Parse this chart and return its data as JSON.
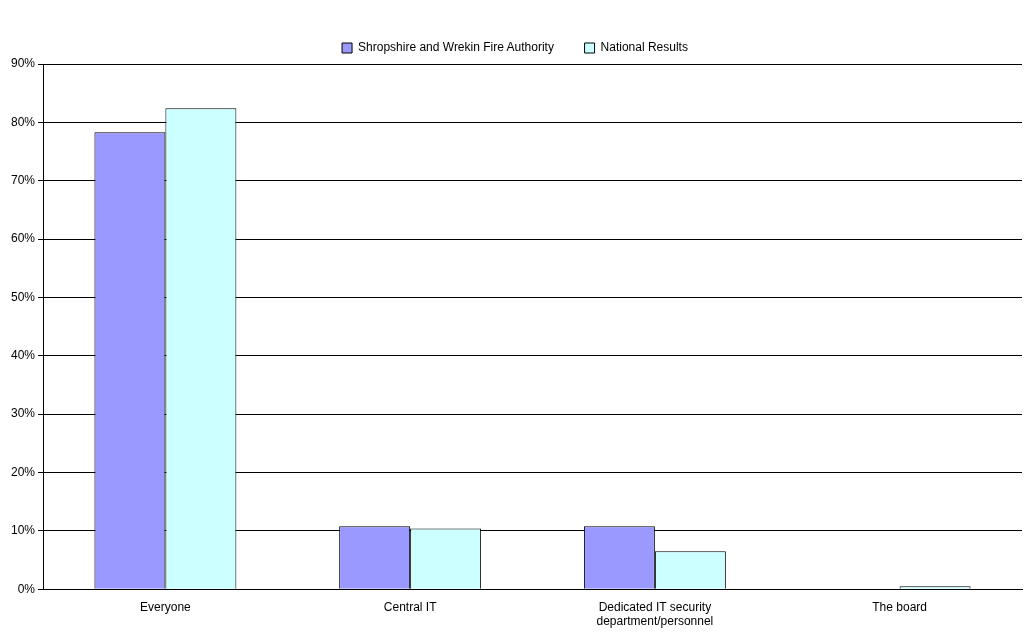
{
  "chart_data": {
    "type": "bar",
    "categories": [
      "Everyone",
      "Central IT",
      "Dedicated IT security department/personnel",
      "The board"
    ],
    "series": [
      {
        "name": "Shropshire and Wrekin Fire Authority",
        "color": "#9999ff",
        "values": [
          78.3,
          10.8,
          10.8,
          0
        ]
      },
      {
        "name": "National Results",
        "color": "#ccffff",
        "values": [
          82.4,
          10.4,
          6.5,
          0.5
        ]
      }
    ],
    "ylim": [
      0,
      90
    ],
    "yticks": [
      {
        "value": 0,
        "label": "0%"
      },
      {
        "value": 10,
        "label": "10%"
      },
      {
        "value": 20,
        "label": "20%"
      },
      {
        "value": 30,
        "label": "30%"
      },
      {
        "value": 40,
        "label": "40%"
      },
      {
        "value": 50,
        "label": "50%"
      },
      {
        "value": 60,
        "label": "60%"
      },
      {
        "value": 70,
        "label": "70%"
      },
      {
        "value": 80,
        "label": "80%"
      },
      {
        "value": 90,
        "label": "90%"
      }
    ],
    "grid": "y",
    "legend": "top"
  }
}
